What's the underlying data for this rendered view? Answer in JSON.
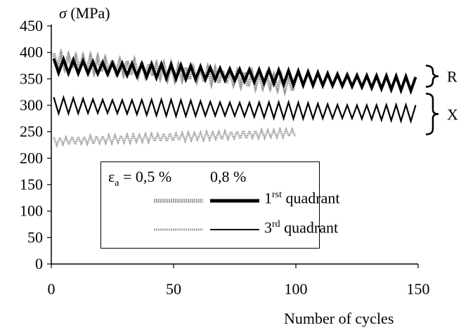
{
  "chart_data": {
    "type": "line",
    "ylabel_symbol": "σ",
    "ylabel_unit": "(MPa)",
    "xlabel": "Number of cycles",
    "xlim": [
      0,
      150
    ],
    "ylim": [
      0,
      450
    ],
    "x_ticks": [
      0,
      50,
      100,
      150
    ],
    "y_ticks": [
      0,
      50,
      100,
      150,
      200,
      250,
      300,
      350,
      400,
      450
    ],
    "series": [
      {
        "label_key": "r_05",
        "group": "R",
        "epsilon": "0,5 %",
        "quadrant": "1rst",
        "x_start": 1,
        "x_end": 100,
        "mean_start": 385,
        "mean_end": 340,
        "amplitude": 12,
        "period": 3,
        "style": "grey-thick"
      },
      {
        "label_key": "x_05",
        "group": "X",
        "epsilon": "0,5 %",
        "quadrant": "3rd",
        "x_start": 1,
        "x_end": 100,
        "mean_start": 232,
        "mean_end": 248,
        "amplitude": 7,
        "period": 2.5,
        "style": "grey-thin"
      },
      {
        "label_key": "r_08",
        "group": "R",
        "epsilon": "0,8 %",
        "quadrant": "1rst",
        "x_start": 1,
        "x_end": 150,
        "mean_start": 375,
        "mean_end": 340,
        "amplitude": 12,
        "period": 4,
        "style": "black-thick"
      },
      {
        "label_key": "x_08",
        "group": "X",
        "epsilon": "0,8 %",
        "quadrant": "3rd",
        "x_start": 1,
        "x_end": 150,
        "mean_start": 300,
        "mean_end": 285,
        "amplitude": 14,
        "period": 4,
        "style": "black-thin"
      }
    ],
    "brackets": [
      "R",
      "X"
    ]
  },
  "legend": {
    "eps_symbol": "ε",
    "eps_sub": "a",
    "eps_eq": " = 0,5 %",
    "col2": "0,8 %",
    "row1_main": "1",
    "row1_sup": "rst",
    "row1_rest": " quadrant",
    "row2_main": "3",
    "row2_sup": "rd",
    "row2_rest": " quadrant"
  }
}
